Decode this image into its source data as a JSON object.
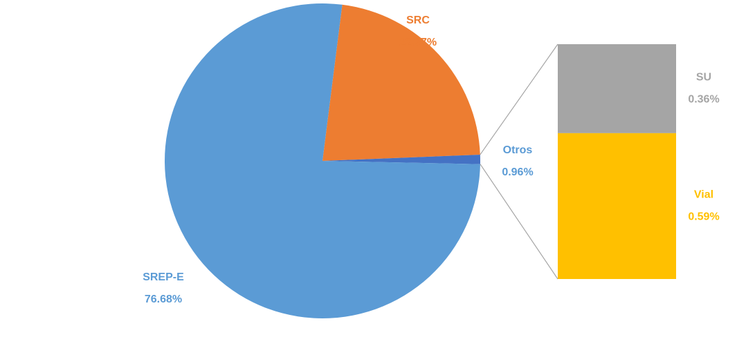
{
  "chart_data": {
    "type": "pie-of-bar",
    "pie": {
      "categories": [
        "SRC",
        "Otros",
        "SREP-E"
      ],
      "values": [
        22.37,
        0.96,
        76.68
      ],
      "value_labels": [
        "22.37%",
        "0.96%",
        "76.68%"
      ],
      "colors": [
        "#ED7D31",
        "#4472C4",
        "#5B9BD5"
      ]
    },
    "bar": {
      "categories": [
        "SU",
        "Vial"
      ],
      "values": [
        0.36,
        0.59
      ],
      "value_labels": [
        "0.36%",
        "0.59%"
      ],
      "colors": [
        "#A5A5A5",
        "#FFC000"
      ]
    }
  }
}
